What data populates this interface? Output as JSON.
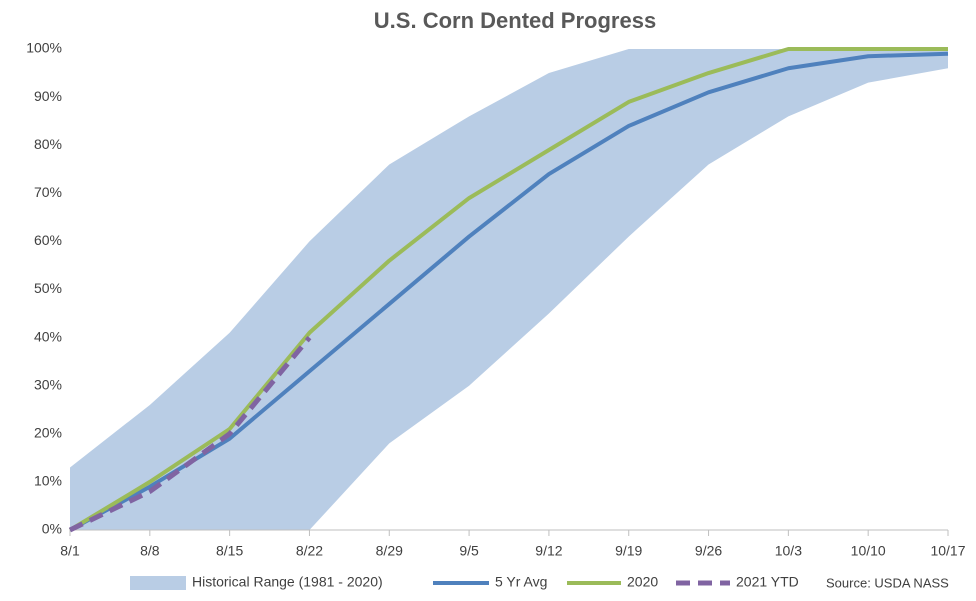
{
  "chart_data": {
    "type": "line",
    "title": "U.S. Corn Dented Progress",
    "categories": [
      "8/1",
      "8/8",
      "8/15",
      "8/22",
      "8/29",
      "9/5",
      "9/12",
      "9/19",
      "9/26",
      "10/3",
      "10/10",
      "10/17"
    ],
    "series": [
      {
        "name": "Historical Range (1981 - 2020)",
        "color": "#b9cde5",
        "kind": "band",
        "low": [
          0,
          0,
          0,
          0,
          18,
          30,
          45,
          61,
          76,
          86,
          93,
          96
        ],
        "high": [
          13,
          26,
          41,
          60,
          76,
          86,
          95,
          100,
          100,
          100,
          100,
          100
        ]
      },
      {
        "name": "5 Yr Avg",
        "color": "#4f81bd",
        "values": [
          0,
          9,
          19,
          33,
          47,
          61,
          74,
          84,
          91,
          96,
          98.5,
          99
        ]
      },
      {
        "name": "2020",
        "color": "#9bbb59",
        "values": [
          0,
          10,
          21,
          41,
          56,
          69,
          79,
          89,
          95,
          100,
          100,
          100
        ]
      },
      {
        "name": "2021 YTD",
        "color": "#8064a2",
        "dashed": true,
        "values": [
          0,
          8,
          20,
          40,
          null,
          null,
          null,
          null,
          null,
          null,
          null,
          null
        ]
      }
    ],
    "ylim": [
      0,
      100
    ],
    "yticks": [
      {
        "value": 0,
        "label": "0%"
      },
      {
        "value": 10,
        "label": "10%"
      },
      {
        "value": 20,
        "label": "20%"
      },
      {
        "value": 30,
        "label": "30%"
      },
      {
        "value": 40,
        "label": "40%"
      },
      {
        "value": 50,
        "label": "50%"
      },
      {
        "value": 60,
        "label": "60%"
      },
      {
        "value": 70,
        "label": "70%"
      },
      {
        "value": 80,
        "label": "80%"
      },
      {
        "value": 90,
        "label": "90%"
      },
      {
        "value": 100,
        "label": "100%"
      }
    ],
    "source": "Source: USDA NASS",
    "legend": "bottom"
  }
}
